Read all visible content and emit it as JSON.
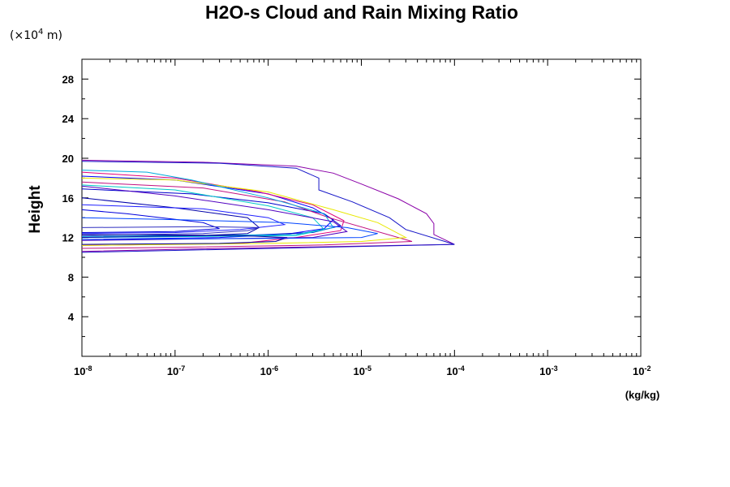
{
  "chart_data": {
    "type": "line",
    "title": "H2O-s Cloud and Rain Mixing Ratio",
    "ylabel": "Height",
    "yunit_prefix": "(×10",
    "yunit_exp": "4",
    "yunit_suffix": " m)",
    "xunit": "(kg/kg)",
    "xscale": "log",
    "xlim": [
      1e-08,
      0.01
    ],
    "ylim": [
      0,
      30
    ],
    "grid": false,
    "xticks": [
      {
        "value": 1e-08,
        "base": "10",
        "exp": "-8"
      },
      {
        "value": 1e-07,
        "base": "10",
        "exp": "-7"
      },
      {
        "value": 1e-06,
        "base": "10",
        "exp": "-6"
      },
      {
        "value": 1e-05,
        "base": "10",
        "exp": "-5"
      },
      {
        "value": 0.0001,
        "base": "10",
        "exp": "-4"
      },
      {
        "value": 0.001,
        "base": "10",
        "exp": "-3"
      },
      {
        "value": 0.01,
        "base": "10",
        "exp": "-2"
      }
    ],
    "yticks": [
      {
        "value": 4,
        "label": "4"
      },
      {
        "value": 8,
        "label": "8"
      },
      {
        "value": 12,
        "label": "12"
      },
      {
        "value": 16,
        "label": "16"
      },
      {
        "value": 20,
        "label": "20"
      },
      {
        "value": 24,
        "label": "24"
      },
      {
        "value": 28,
        "label": "28"
      }
    ],
    "series": [
      {
        "color": "#8a00a8",
        "points": [
          [
            1e-08,
            19.8
          ],
          [
            2e-07,
            19.6
          ],
          [
            2e-06,
            19.2
          ],
          [
            5e-06,
            18.5
          ],
          [
            1e-05,
            17.4
          ],
          [
            2.5e-05,
            15.9
          ],
          [
            5e-05,
            14.4
          ],
          [
            6e-05,
            13.4
          ],
          [
            6e-05,
            12.3
          ],
          [
            0.0001,
            11.3
          ],
          [
            3e-06,
            11.05
          ],
          [
            1e-07,
            10.8
          ],
          [
            1e-08,
            10.6
          ]
        ]
      },
      {
        "color": "#1515c8",
        "points": [
          [
            1e-08,
            19.7
          ],
          [
            3e-07,
            19.5
          ],
          [
            2e-06,
            19.0
          ],
          [
            3.5e-06,
            18.0
          ],
          [
            3.5e-06,
            16.8
          ],
          [
            8e-06,
            15.6
          ],
          [
            2e-05,
            14.0
          ],
          [
            3e-05,
            12.8
          ],
          [
            0.0001,
            11.3
          ],
          [
            2e-06,
            10.95
          ],
          [
            1e-07,
            10.7
          ],
          [
            1e-08,
            10.5
          ]
        ]
      },
      {
        "color": "#0000ff",
        "points": [
          [
            1e-08,
            18.2
          ],
          [
            1e-07,
            17.8
          ],
          [
            1e-06,
            16.4
          ],
          [
            3e-06,
            15.0
          ],
          [
            5e-06,
            13.8
          ],
          [
            4e-06,
            12.9
          ],
          [
            1.5e-06,
            12.3
          ],
          [
            3e-07,
            12.0
          ],
          [
            1e-08,
            11.8
          ]
        ]
      },
      {
        "color": "#0000cd",
        "points": [
          [
            1e-08,
            16.9
          ],
          [
            1.5e-07,
            16.4
          ],
          [
            1e-06,
            15.5
          ],
          [
            4e-06,
            14.4
          ],
          [
            6e-06,
            13.2
          ],
          [
            3e-06,
            12.5
          ],
          [
            5e-07,
            12.2
          ],
          [
            1e-08,
            12.0
          ]
        ]
      },
      {
        "color": "#e0007a",
        "points": [
          [
            1e-08,
            18.6
          ],
          [
            1e-07,
            18.0
          ],
          [
            8e-07,
            16.6
          ],
          [
            3e-06,
            15.3
          ],
          [
            6.5e-06,
            13.7
          ],
          [
            6e-06,
            12.7
          ],
          [
            2e-06,
            12.0
          ],
          [
            5e-07,
            11.4
          ],
          [
            1e-08,
            11.2
          ]
        ]
      },
      {
        "color": "#c01080",
        "points": [
          [
            1e-08,
            17.6
          ],
          [
            2e-07,
            17.0
          ],
          [
            1.5e-06,
            15.6
          ],
          [
            4.5e-06,
            14.0
          ],
          [
            3.5e-05,
            11.6
          ],
          [
            4e-06,
            11.25
          ],
          [
            1e-07,
            11.0
          ],
          [
            1e-08,
            10.9
          ]
        ]
      },
      {
        "color": "#e8e800",
        "points": [
          [
            1e-08,
            18.0
          ],
          [
            1e-07,
            17.8
          ],
          [
            1e-06,
            16.6
          ],
          [
            5e-06,
            14.8
          ],
          [
            1.5e-05,
            13.5
          ],
          [
            3e-05,
            12.0
          ],
          [
            1e-05,
            11.6
          ],
          [
            1e-06,
            11.4
          ],
          [
            1e-08,
            11.2
          ]
        ]
      },
      {
        "color": "#00aadd",
        "points": [
          [
            1e-08,
            18.8
          ],
          [
            5e-08,
            18.6
          ],
          [
            1.5e-07,
            17.8
          ],
          [
            1e-06,
            16.0
          ],
          [
            4e-06,
            14.4
          ],
          [
            5e-06,
            13.0
          ],
          [
            2e-06,
            12.3
          ],
          [
            1e-08,
            12.1
          ]
        ]
      },
      {
        "color": "#00c8c8",
        "points": [
          [
            1e-08,
            17.3
          ],
          [
            1e-07,
            16.8
          ],
          [
            1e-06,
            15.2
          ],
          [
            3e-06,
            14.0
          ],
          [
            4e-06,
            12.8
          ],
          [
            2e-06,
            12.2
          ],
          [
            1e-08,
            12.0
          ]
        ]
      },
      {
        "color": "#0000aa",
        "points": [
          [
            1e-08,
            16.0
          ],
          [
            1e-07,
            15.0
          ],
          [
            6e-07,
            14.0
          ],
          [
            8e-07,
            13.0
          ],
          [
            6e-07,
            12.4
          ],
          [
            2e-07,
            12.2
          ],
          [
            1e-08,
            12.0
          ]
        ]
      },
      {
        "color": "#2020ff",
        "points": [
          [
            1e-08,
            15.3
          ],
          [
            2e-07,
            14.9
          ],
          [
            1e-06,
            14.0
          ],
          [
            1.5e-06,
            13.3
          ],
          [
            5e-07,
            12.8
          ],
          [
            1e-07,
            12.5
          ],
          [
            1e-08,
            12.4
          ]
        ]
      },
      {
        "color": "#0000dd",
        "points": [
          [
            1e-08,
            14.8
          ],
          [
            3e-08,
            14.4
          ],
          [
            2e-07,
            13.5
          ],
          [
            3e-07,
            12.9
          ],
          [
            1e-07,
            12.6
          ],
          [
            1e-08,
            12.5
          ]
        ]
      },
      {
        "color": "#3030c0",
        "points": [
          [
            1e-08,
            13.0
          ],
          [
            2e-07,
            13.1
          ],
          [
            8e-07,
            13.0
          ],
          [
            6e-07,
            12.7
          ],
          [
            2e-07,
            12.4
          ],
          [
            1e-08,
            12.2
          ]
        ]
      },
      {
        "color": "#000099",
        "points": [
          [
            1e-08,
            12.3
          ],
          [
            5e-07,
            12.2
          ],
          [
            1.6e-06,
            12.0
          ],
          [
            1.2e-06,
            11.6
          ],
          [
            3e-07,
            11.4
          ],
          [
            1e-08,
            11.3
          ]
        ]
      },
      {
        "color": "#5000c0",
        "points": [
          [
            1e-08,
            17.2
          ],
          [
            1e-07,
            16.2
          ],
          [
            1e-06,
            14.8
          ],
          [
            5e-06,
            13.6
          ],
          [
            7e-06,
            12.6
          ],
          [
            3e-06,
            12.0
          ],
          [
            1e-08,
            11.7
          ]
        ]
      },
      {
        "color": "#0044ff",
        "points": [
          [
            1e-08,
            14.0
          ],
          [
            1e-07,
            13.8
          ],
          [
            1.5e-06,
            13.5
          ],
          [
            7e-06,
            13.0
          ],
          [
            1.5e-05,
            12.4
          ],
          [
            1e-05,
            12.0
          ],
          [
            1e-06,
            11.9
          ],
          [
            1e-08,
            11.8
          ]
        ]
      }
    ]
  }
}
